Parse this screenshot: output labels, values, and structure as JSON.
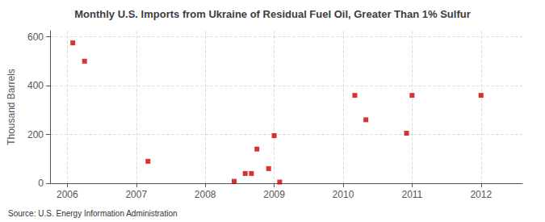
{
  "chart_data": {
    "type": "scatter",
    "title": "Monthly U.S. Imports from Ukraine of Residual Fuel Oil, Greater Than 1% Sulfur",
    "ylabel": "Thousand Barrels",
    "annotation": "Source: U.S. Energy Information Administration",
    "x": [
      2006.08,
      2006.25,
      2007.17,
      2008.42,
      2008.58,
      2008.67,
      2008.75,
      2008.92,
      2009.0,
      2009.08,
      2010.17,
      2010.33,
      2010.92,
      2011.0,
      2012.0
    ],
    "values": [
      575,
      500,
      90,
      8,
      40,
      40,
      140,
      60,
      195,
      5,
      360,
      260,
      205,
      360,
      360
    ],
    "color": "#cc0000",
    "marker": "square",
    "xlim": [
      2005.75,
      2012.6
    ],
    "xticks": [
      2006,
      2007,
      2008,
      2009,
      2010,
      2011,
      2012
    ],
    "ylim": [
      0,
      625
    ],
    "yticks": [
      0,
      200,
      400,
      600
    ],
    "grid": true
  }
}
